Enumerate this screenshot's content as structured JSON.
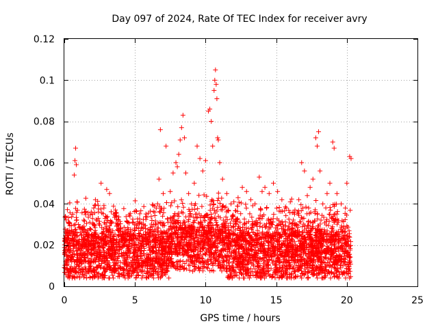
{
  "chart_data": {
    "type": "scatter",
    "title": "Day 097 of 2024, Rate Of TEC Index for receiver avry",
    "xlabel": "GPS time / hours",
    "ylabel": "ROTI / TECUs",
    "xlim": [
      0,
      25
    ],
    "ylim": [
      0,
      0.12
    ],
    "x_ticks": [
      0,
      5,
      10,
      15,
      20,
      25
    ],
    "x_tick_labels": [
      "0",
      "5",
      "10",
      "15",
      "20",
      "25"
    ],
    "y_ticks": [
      0,
      0.02,
      0.04,
      0.06,
      0.08,
      0.1,
      0.12
    ],
    "y_tick_labels": [
      "0",
      "0.02",
      "0.04",
      "0.06",
      "0.08",
      "0.1",
      "0.12"
    ],
    "grid": true,
    "marker": "plus",
    "color": "#ff0000",
    "data_x_range": [
      0,
      20.3
    ],
    "series": [
      {
        "name": "ROTI",
        "points": [
          [
            0.1,
            0.012
          ],
          [
            0.2,
            0.027
          ],
          [
            0.3,
            0.018
          ],
          [
            0.5,
            0.022
          ],
          [
            0.6,
            0.035
          ],
          [
            0.7,
            0.054
          ],
          [
            0.75,
            0.061
          ],
          [
            0.8,
            0.067
          ],
          [
            0.85,
            0.059
          ],
          [
            0.9,
            0.041
          ],
          [
            1.0,
            0.03
          ],
          [
            1.2,
            0.025
          ],
          [
            1.5,
            0.02
          ],
          [
            1.8,
            0.028
          ],
          [
            2.0,
            0.035
          ],
          [
            2.2,
            0.042
          ],
          [
            2.4,
            0.033
          ],
          [
            2.6,
            0.05
          ],
          [
            2.8,
            0.038
          ],
          [
            3.0,
            0.047
          ],
          [
            3.2,
            0.045
          ],
          [
            3.5,
            0.035
          ],
          [
            3.8,
            0.03
          ],
          [
            4.0,
            0.028
          ],
          [
            4.3,
            0.025
          ],
          [
            4.5,
            0.031
          ],
          [
            4.8,
            0.022
          ],
          [
            5.0,
            0.027
          ],
          [
            5.3,
            0.024
          ],
          [
            5.6,
            0.03
          ],
          [
            5.9,
            0.026
          ],
          [
            6.2,
            0.032
          ],
          [
            6.4,
            0.036
          ],
          [
            6.6,
            0.04
          ],
          [
            6.7,
            0.052
          ],
          [
            6.8,
            0.076
          ],
          [
            7.0,
            0.045
          ],
          [
            7.2,
            0.068
          ],
          [
            7.5,
            0.046
          ],
          [
            7.7,
            0.055
          ],
          [
            7.9,
            0.06
          ],
          [
            8.0,
            0.058
          ],
          [
            8.1,
            0.064
          ],
          [
            8.2,
            0.071
          ],
          [
            8.3,
            0.077
          ],
          [
            8.4,
            0.083
          ],
          [
            8.5,
            0.072
          ],
          [
            8.6,
            0.055
          ],
          [
            8.8,
            0.045
          ],
          [
            9.0,
            0.04
          ],
          [
            9.2,
            0.05
          ],
          [
            9.4,
            0.068
          ],
          [
            9.6,
            0.062
          ],
          [
            9.8,
            0.056
          ],
          [
            10.0,
            0.061
          ],
          [
            10.2,
            0.085
          ],
          [
            10.3,
            0.086
          ],
          [
            10.4,
            0.08
          ],
          [
            10.5,
            0.068
          ],
          [
            10.6,
            0.095
          ],
          [
            10.65,
            0.1
          ],
          [
            10.7,
            0.105
          ],
          [
            10.75,
            0.098
          ],
          [
            10.8,
            0.091
          ],
          [
            10.85,
            0.072
          ],
          [
            10.9,
            0.071
          ],
          [
            11.0,
            0.06
          ],
          [
            11.2,
            0.052
          ],
          [
            11.5,
            0.045
          ],
          [
            11.8,
            0.04
          ],
          [
            12.0,
            0.041
          ],
          [
            12.3,
            0.043
          ],
          [
            12.6,
            0.048
          ],
          [
            12.9,
            0.046
          ],
          [
            13.2,
            0.042
          ],
          [
            13.5,
            0.04
          ],
          [
            13.8,
            0.053
          ],
          [
            14.0,
            0.046
          ],
          [
            14.2,
            0.048
          ],
          [
            14.5,
            0.045
          ],
          [
            14.8,
            0.05
          ],
          [
            15.1,
            0.046
          ],
          [
            15.4,
            0.042
          ],
          [
            15.7,
            0.038
          ],
          [
            16.0,
            0.041
          ],
          [
            16.3,
            0.035
          ],
          [
            16.6,
            0.042
          ],
          [
            16.8,
            0.06
          ],
          [
            17.0,
            0.056
          ],
          [
            17.2,
            0.044
          ],
          [
            17.4,
            0.048
          ],
          [
            17.6,
            0.052
          ],
          [
            17.8,
            0.072
          ],
          [
            17.9,
            0.068
          ],
          [
            18.0,
            0.075
          ],
          [
            18.1,
            0.056
          ],
          [
            18.3,
            0.04
          ],
          [
            18.6,
            0.045
          ],
          [
            18.8,
            0.05
          ],
          [
            19.0,
            0.07
          ],
          [
            19.1,
            0.067
          ],
          [
            19.3,
            0.045
          ],
          [
            19.6,
            0.04
          ],
          [
            19.9,
            0.038
          ],
          [
            20.0,
            0.05
          ],
          [
            20.2,
            0.063
          ],
          [
            20.3,
            0.062
          ]
        ]
      }
    ]
  }
}
